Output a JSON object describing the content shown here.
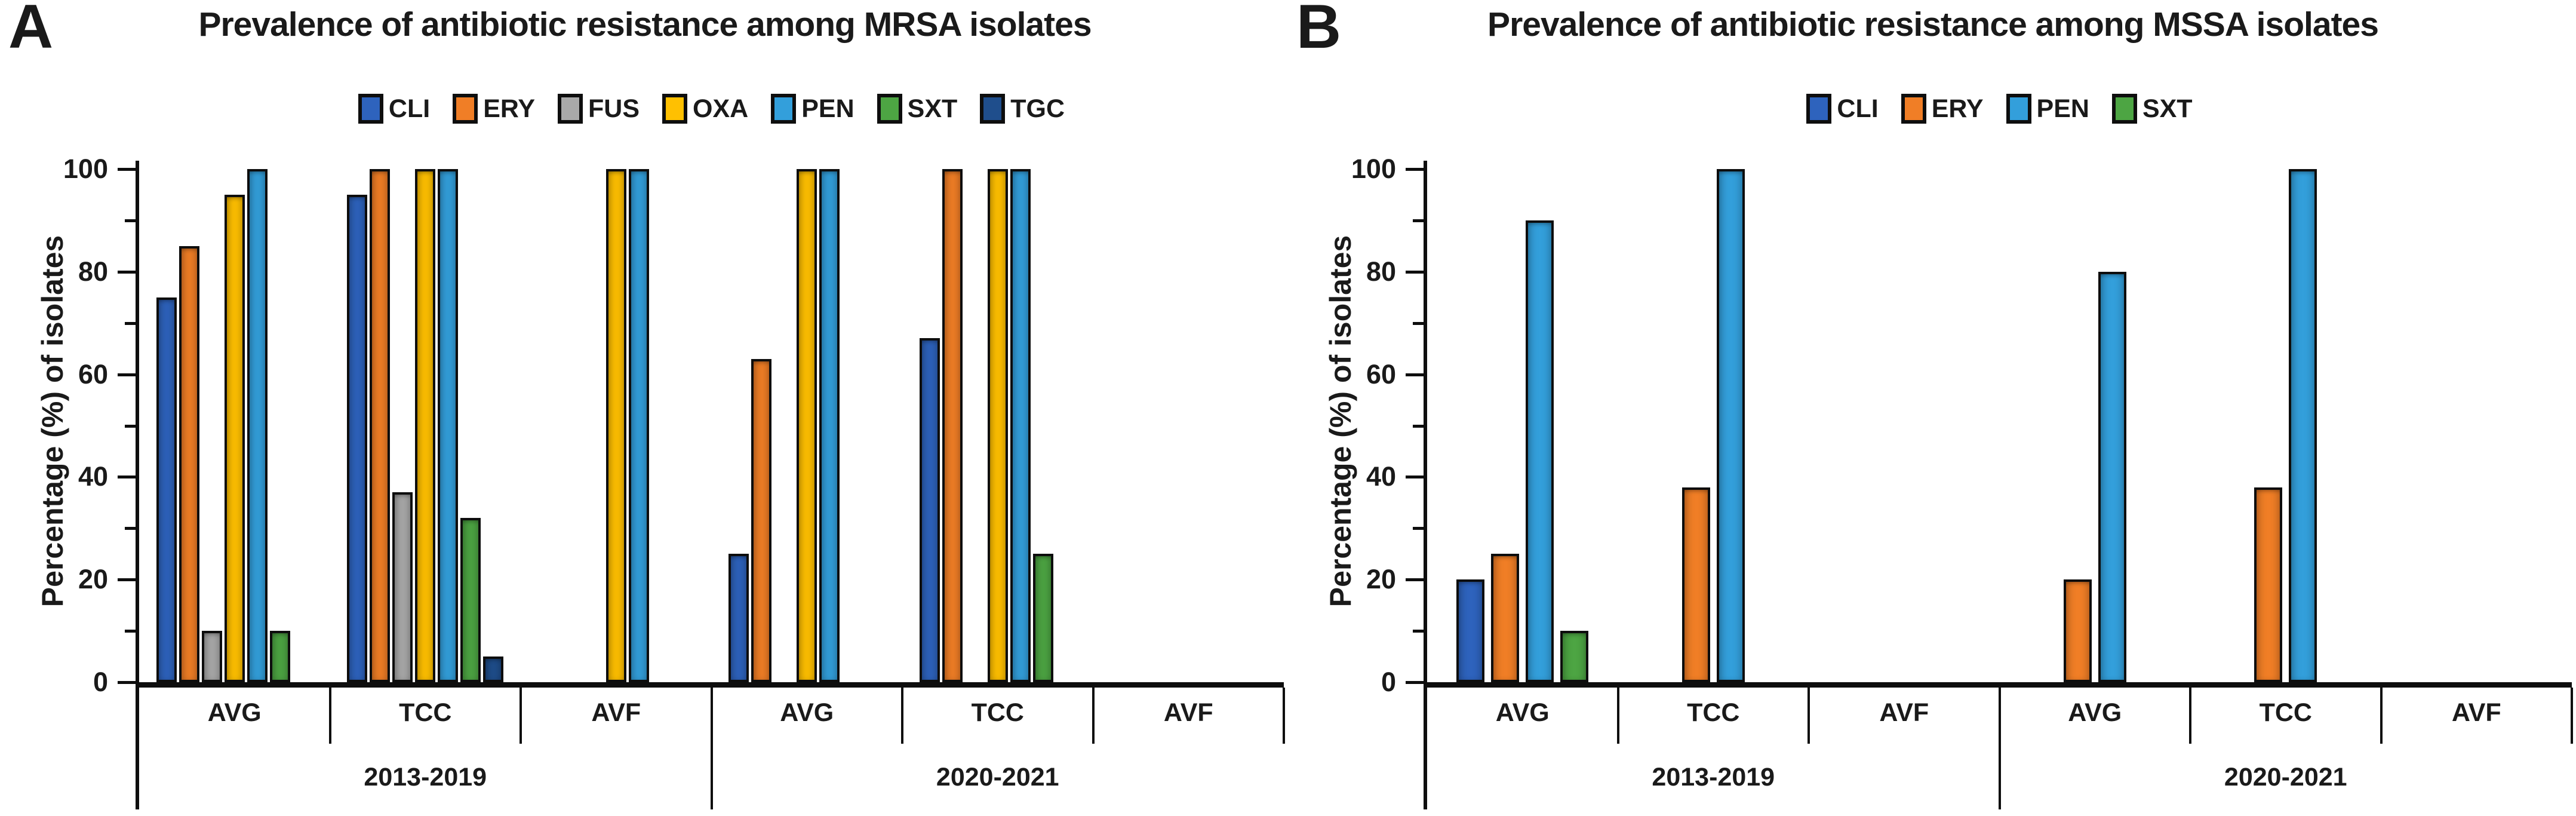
{
  "figure_caption_letters": [
    "A",
    "B"
  ],
  "chart_data": [
    {
      "type": "bar",
      "panel_letter": "A",
      "title": "Prevalence of antibiotic resistance among MRSA isolates",
      "ylabel": "Percentage (%) of isolates",
      "ylim": [
        0,
        100
      ],
      "yticks_major": [
        0,
        20,
        40,
        60,
        80,
        100
      ],
      "yticks_minor": [
        10,
        30,
        50,
        70,
        90
      ],
      "grid": "off",
      "legend_position": "top",
      "categories": [
        "AVG",
        "TCC",
        "AVF",
        "AVG",
        "TCC",
        "AVF"
      ],
      "group_labels": [
        "2013-2019",
        "2020-2021"
      ],
      "group_spans": [
        [
          0,
          3
        ],
        [
          3,
          6
        ]
      ],
      "series": [
        {
          "name": "CLI",
          "color": "#2E63BD",
          "values": [
            75,
            95,
            0,
            25,
            67,
            0
          ]
        },
        {
          "name": "ERY",
          "color": "#F07E26",
          "values": [
            85,
            100,
            0,
            63,
            100,
            0
          ]
        },
        {
          "name": "FUS",
          "color": "#A9A9A9",
          "values": [
            10,
            37,
            0,
            0,
            0,
            0
          ]
        },
        {
          "name": "OXA",
          "color": "#FFC001",
          "values": [
            95,
            100,
            100,
            100,
            100,
            0
          ]
        },
        {
          "name": "PEN",
          "color": "#339FDB",
          "values": [
            100,
            100,
            100,
            100,
            100,
            0
          ]
        },
        {
          "name": "SXT",
          "color": "#4DA543",
          "values": [
            10,
            32,
            0,
            0,
            25,
            0
          ]
        },
        {
          "name": "TGC",
          "color": "#1F4E8C",
          "values": [
            0,
            5,
            0,
            0,
            0,
            0
          ]
        }
      ]
    },
    {
      "type": "bar",
      "panel_letter": "B",
      "title": "Prevalence of antibiotic resistance among MSSA isolates",
      "ylabel": "Percentage (%) of isolates",
      "ylim": [
        0,
        100
      ],
      "yticks_major": [
        0,
        20,
        40,
        60,
        80,
        100
      ],
      "yticks_minor": [
        10,
        30,
        50,
        70,
        90
      ],
      "grid": "off",
      "legend_position": "top",
      "categories": [
        "AVG",
        "TCC",
        "AVF",
        "AVG",
        "TCC",
        "AVF"
      ],
      "group_labels": [
        "2013-2019",
        "2020-2021"
      ],
      "group_spans": [
        [
          0,
          3
        ],
        [
          3,
          6
        ]
      ],
      "series": [
        {
          "name": "CLI",
          "color": "#2E63BD",
          "values": [
            20,
            0,
            0,
            0,
            0,
            0
          ]
        },
        {
          "name": "ERY",
          "color": "#F07E26",
          "values": [
            25,
            38,
            0,
            20,
            38,
            0
          ]
        },
        {
          "name": "PEN",
          "color": "#339FDB",
          "values": [
            90,
            100,
            0,
            80,
            100,
            0
          ]
        },
        {
          "name": "SXT",
          "color": "#4DA543",
          "values": [
            10,
            0,
            0,
            0,
            0,
            0
          ]
        }
      ]
    }
  ]
}
